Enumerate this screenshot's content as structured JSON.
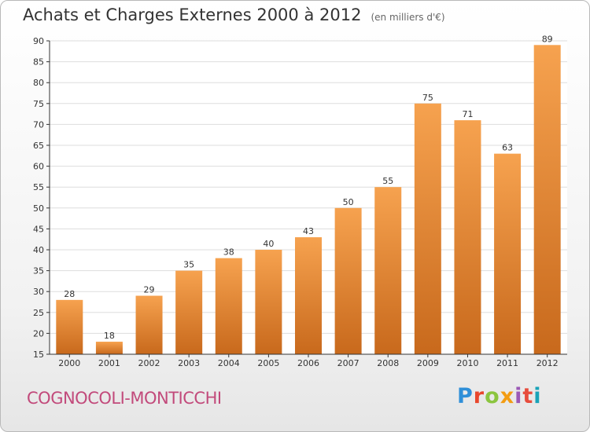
{
  "title": "Achats et Charges Externes 2000 à 2012",
  "subtitle": "(en milliers d'€)",
  "commune": "COGNOCOLI-MONTICCHI",
  "logo": {
    "p": "P",
    "r": "r",
    "o": "o",
    "x": "x",
    "i1": "i",
    "t": "t",
    "i2": "i"
  },
  "colors": {
    "bar_top": "#f6a24f",
    "bar_bottom": "#c8691c",
    "grid": "#dddddd",
    "axis": "#333333"
  },
  "chart_data": {
    "type": "bar",
    "categories": [
      "2000",
      "2001",
      "2002",
      "2003",
      "2004",
      "2005",
      "2006",
      "2007",
      "2008",
      "2009",
      "2010",
      "2011",
      "2012"
    ],
    "values": [
      28,
      18,
      29,
      35,
      38,
      40,
      43,
      50,
      55,
      75,
      71,
      63,
      89
    ],
    "title": "Achats et Charges Externes 2000 à 2012",
    "ylim": [
      15,
      90
    ],
    "yticks": [
      15,
      20,
      25,
      30,
      35,
      40,
      45,
      50,
      55,
      60,
      65,
      70,
      75,
      80,
      85,
      90
    ],
    "grid": true,
    "legend": "none"
  }
}
